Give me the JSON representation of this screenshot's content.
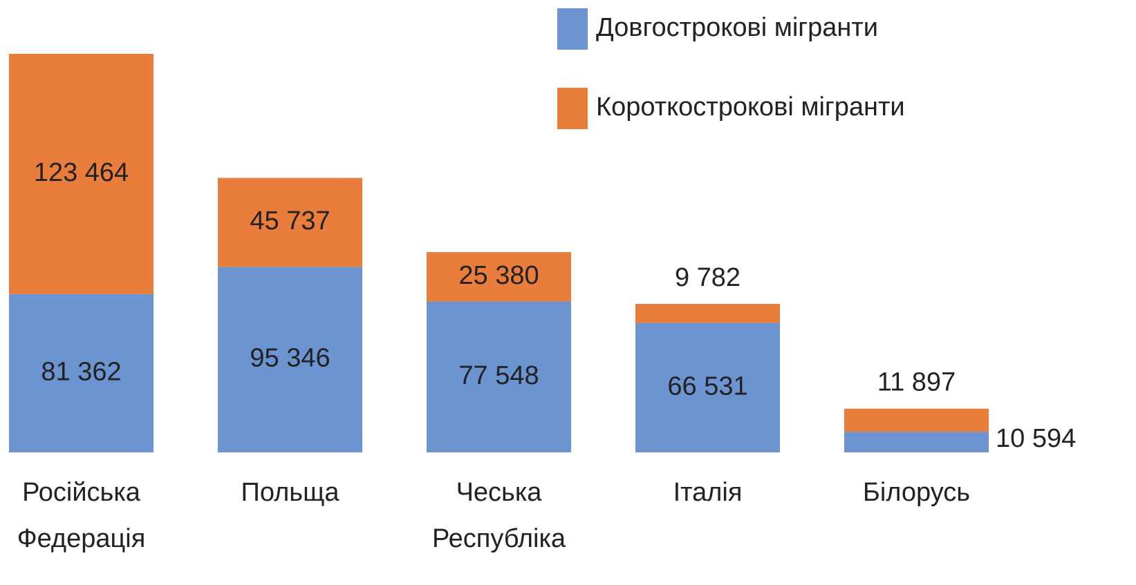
{
  "chart_data": {
    "type": "stacked_bar",
    "categories": [
      "Російська Федерація",
      "Польща",
      "Чеська Республіка",
      "Італія",
      "Білорусь"
    ],
    "series": [
      {
        "name": "Довгострокові мігранти",
        "color": "#6b94d0",
        "values": [
          81362,
          95346,
          77548,
          66531,
          10594
        ],
        "value_labels": [
          "81 362",
          "95 346",
          "77 548",
          "66 531",
          "10 594"
        ]
      },
      {
        "name": "Короткострокові мігранти",
        "color": "#e97d3c",
        "values": [
          123464,
          45737,
          25380,
          9782,
          11897
        ],
        "value_labels": [
          "123 464",
          "45 737",
          "25 380",
          "9 782",
          "11 897"
        ]
      }
    ],
    "legend": "top-right"
  }
}
